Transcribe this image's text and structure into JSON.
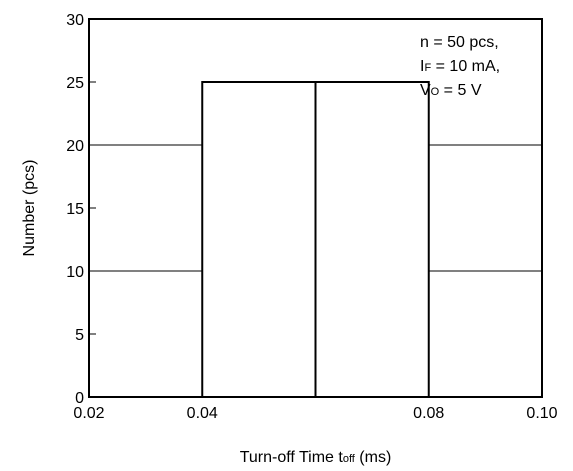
{
  "chart_data": {
    "type": "bar",
    "title": "",
    "xlabel": {
      "main": "Turn-off Time  t",
      "sub": "off",
      "unit": " (ms)"
    },
    "ylabel": "Number  (pcs)",
    "xlim": [
      0.02,
      0.1
    ],
    "ylim": [
      0,
      30
    ],
    "x_ticks": [
      0.02,
      0.04,
      0.06,
      0.08,
      0.1
    ],
    "x_tick_labels": [
      "0.02",
      "0.04",
      "",
      "0.08",
      "0.10"
    ],
    "y_ticks": [
      0,
      5,
      10,
      15,
      20,
      25,
      30
    ],
    "y_tick_labels": [
      "0",
      "5",
      "10",
      "15",
      "20",
      "25",
      "30"
    ],
    "gridlines_y": [
      10,
      20
    ],
    "bins": [
      {
        "x0": 0.04,
        "x1": 0.06,
        "value": 25
      },
      {
        "x0": 0.06,
        "x1": 0.08,
        "value": 25
      }
    ],
    "annotations": [
      {
        "parts": [
          {
            "text": "n = 50 pcs,"
          }
        ]
      },
      {
        "parts": [
          {
            "text": "I"
          },
          {
            "text": "F",
            "sub": true
          },
          {
            "text": " = 10 mA,"
          }
        ]
      },
      {
        "parts": [
          {
            "text": "V"
          },
          {
            "text": "O",
            "sub": true
          },
          {
            "text": " = 5 V"
          }
        ]
      }
    ]
  }
}
